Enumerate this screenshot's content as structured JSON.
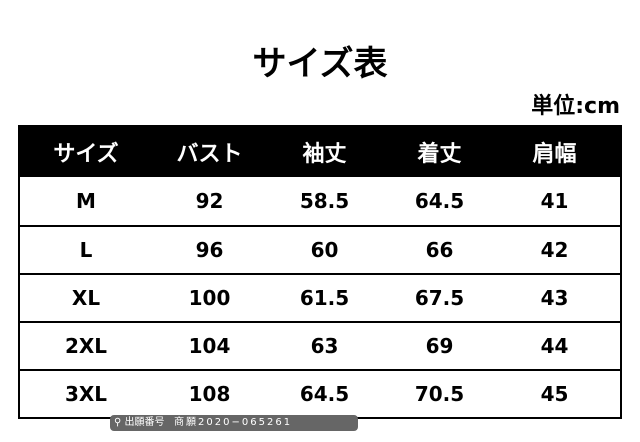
{
  "title": "サイズ表",
  "unit": "単位:cm",
  "table": {
    "headers": [
      "サイズ",
      "バスト",
      "袖丈",
      "着丈",
      "肩幅"
    ],
    "rows": [
      [
        "M",
        "92",
        "58.5",
        "64.5",
        "41"
      ],
      [
        "L",
        "96",
        "60",
        "66",
        "42"
      ],
      [
        "XL",
        "100",
        "61.5",
        "67.5",
        "43"
      ],
      [
        "2XL",
        "104",
        "63",
        "69",
        "44"
      ],
      [
        "3XL",
        "108",
        "64.5",
        "70.5",
        "45"
      ]
    ]
  },
  "watermark": {
    "label": "出願番号",
    "number": "商願2020−065261",
    "icon": "search-icon"
  }
}
